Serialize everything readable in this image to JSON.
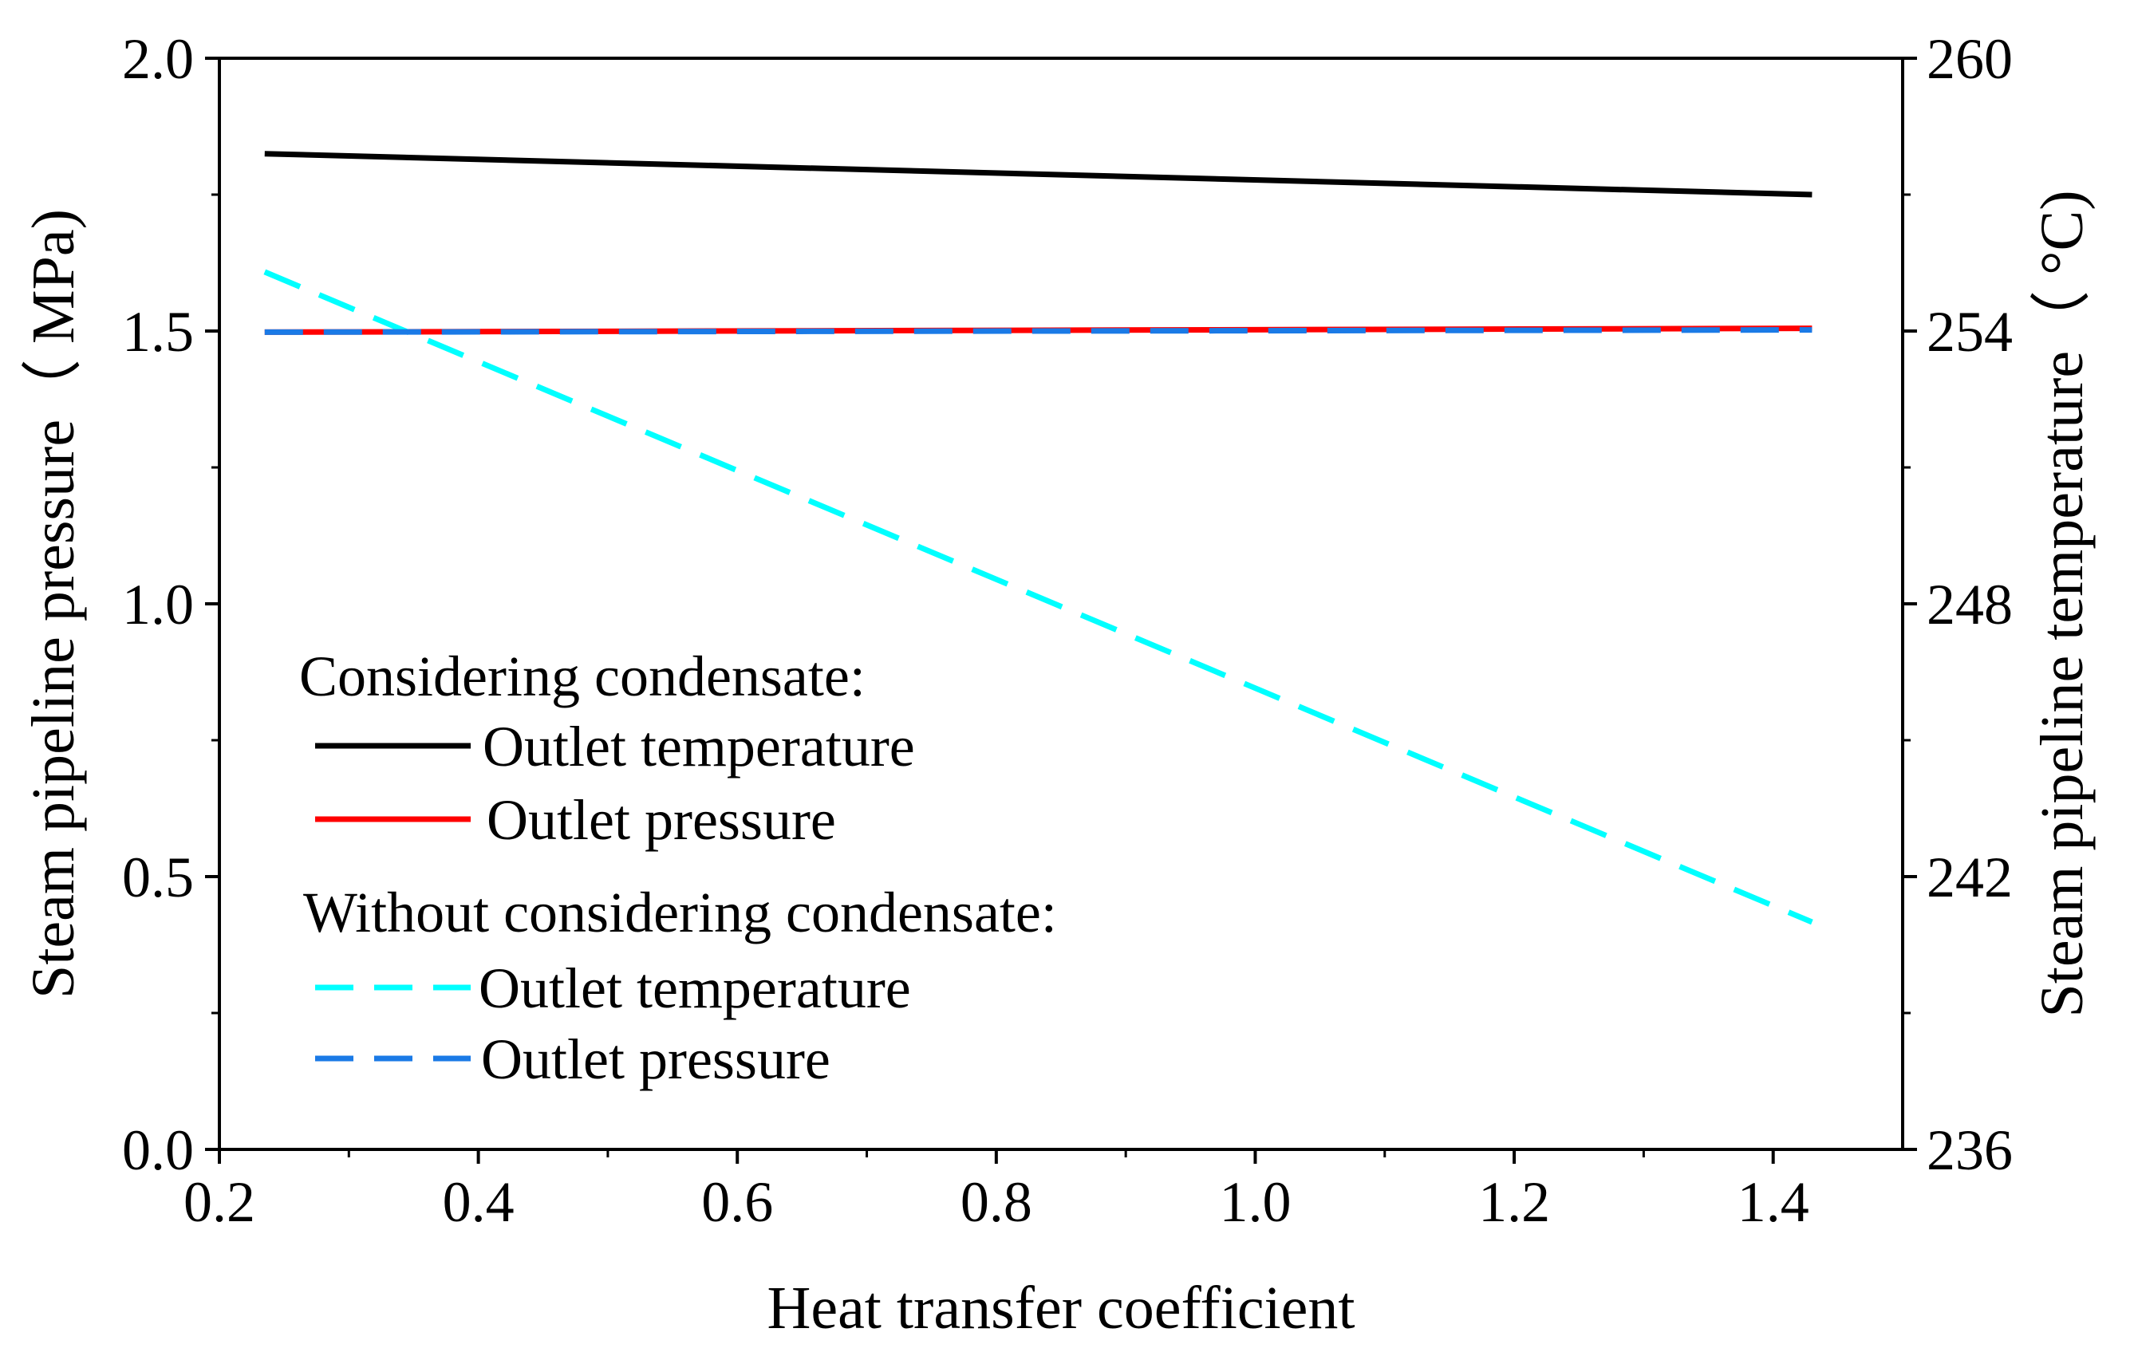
{
  "chart_data": {
    "type": "line",
    "xlabel": "Heat transfer coefficient",
    "ylabel_left": "Steam pipeline pressure（ MPa)",
    "ylabel_right": "Steam pipeline temperature（ °C)",
    "xlim": [
      0.2,
      1.5
    ],
    "ylim_left": [
      0.0,
      2.0
    ],
    "ylim_right": [
      236,
      260
    ],
    "x_ticks": [
      "0.2",
      "0.4",
      "0.6",
      "0.8",
      "1.0",
      "1.2",
      "1.4"
    ],
    "y_left_ticks": [
      "0.0",
      "0.5",
      "1.0",
      "1.5",
      "2.0"
    ],
    "y_right_ticks": [
      "236",
      "242",
      "248",
      "254",
      "260"
    ],
    "legend": {
      "group1_title": "Considering condensate:",
      "group2_title": "Without considering condensate:"
    },
    "series": [
      {
        "name": "Outlet temperature",
        "group": "Considering condensate",
        "axis": "right",
        "color": "#000000",
        "dash": "solid",
        "x": [
          0.235,
          1.43
        ],
        "values": [
          257.9,
          257.0
        ]
      },
      {
        "name": "Outlet pressure",
        "group": "Considering condensate",
        "axis": "left",
        "color": "#ff0000",
        "dash": "solid",
        "x": [
          0.235,
          1.43
        ],
        "values": [
          1.498,
          1.505
        ]
      },
      {
        "name": "Outlet temperature",
        "group": "Without considering condensate",
        "axis": "right",
        "color": "#00ffff",
        "dash": "dashed",
        "x": [
          0.235,
          1.43
        ],
        "values": [
          255.3,
          241.0
        ]
      },
      {
        "name": "Outlet pressure",
        "group": "Without considering condensate",
        "axis": "left",
        "color": "#1a7ae6",
        "dash": "dashed",
        "x": [
          0.235,
          1.43
        ],
        "values": [
          1.498,
          1.502
        ]
      }
    ]
  }
}
